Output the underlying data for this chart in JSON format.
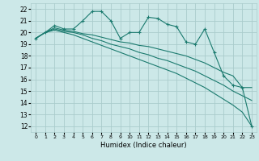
{
  "xlabel": "Humidex (Indice chaleur)",
  "ylabel": "",
  "bg_color": "#cce8e8",
  "grid_color": "#aacccc",
  "line_color": "#1a7a6e",
  "xlim": [
    -0.5,
    23.5
  ],
  "ylim": [
    11.5,
    22.5
  ],
  "yticks": [
    12,
    13,
    14,
    15,
    16,
    17,
    18,
    19,
    20,
    21,
    22
  ],
  "xticks": [
    0,
    1,
    2,
    3,
    4,
    5,
    6,
    7,
    8,
    9,
    10,
    11,
    12,
    13,
    14,
    15,
    16,
    17,
    18,
    19,
    20,
    21,
    22,
    23
  ],
  "series": [
    {
      "x": [
        0,
        1,
        2,
        3,
        4,
        5,
        6,
        7,
        8,
        9,
        10,
        11,
        12,
        13,
        14,
        15,
        16,
        17,
        18,
        19,
        20,
        21,
        22,
        23
      ],
      "y": [
        19.5,
        20.0,
        20.6,
        20.3,
        20.3,
        21.0,
        21.8,
        21.8,
        21.0,
        19.5,
        20.0,
        20.0,
        21.3,
        21.2,
        20.7,
        20.5,
        19.2,
        19.0,
        20.3,
        18.3,
        16.3,
        15.5,
        15.3,
        12.0
      ],
      "marker": true
    },
    {
      "x": [
        0,
        1,
        2,
        3,
        4,
        5,
        6,
        7,
        8,
        9,
        10,
        11,
        12,
        13,
        14,
        15,
        16,
        17,
        18,
        19,
        20,
        21,
        22,
        23
      ],
      "y": [
        19.5,
        20.0,
        20.4,
        20.2,
        20.1,
        19.9,
        19.8,
        19.6,
        19.4,
        19.2,
        19.1,
        18.9,
        18.8,
        18.6,
        18.4,
        18.2,
        18.0,
        17.7,
        17.4,
        17.0,
        16.6,
        16.3,
        15.3,
        15.3
      ],
      "marker": false
    },
    {
      "x": [
        0,
        1,
        2,
        3,
        4,
        5,
        6,
        7,
        8,
        9,
        10,
        11,
        12,
        13,
        14,
        15,
        16,
        17,
        18,
        19,
        20,
        21,
        22,
        23
      ],
      "y": [
        19.5,
        20.0,
        20.3,
        20.1,
        20.0,
        19.8,
        19.5,
        19.3,
        19.0,
        18.8,
        18.6,
        18.3,
        18.1,
        17.8,
        17.6,
        17.3,
        17.0,
        16.7,
        16.3,
        15.9,
        15.5,
        15.0,
        14.6,
        14.2
      ],
      "marker": false
    },
    {
      "x": [
        0,
        1,
        2,
        3,
        4,
        5,
        6,
        7,
        8,
        9,
        10,
        11,
        12,
        13,
        14,
        15,
        16,
        17,
        18,
        19,
        20,
        21,
        22,
        23
      ],
      "y": [
        19.5,
        20.0,
        20.2,
        20.0,
        19.8,
        19.5,
        19.2,
        18.9,
        18.6,
        18.3,
        18.0,
        17.7,
        17.4,
        17.1,
        16.8,
        16.5,
        16.1,
        15.7,
        15.3,
        14.8,
        14.3,
        13.8,
        13.2,
        12.0
      ],
      "marker": false
    }
  ]
}
